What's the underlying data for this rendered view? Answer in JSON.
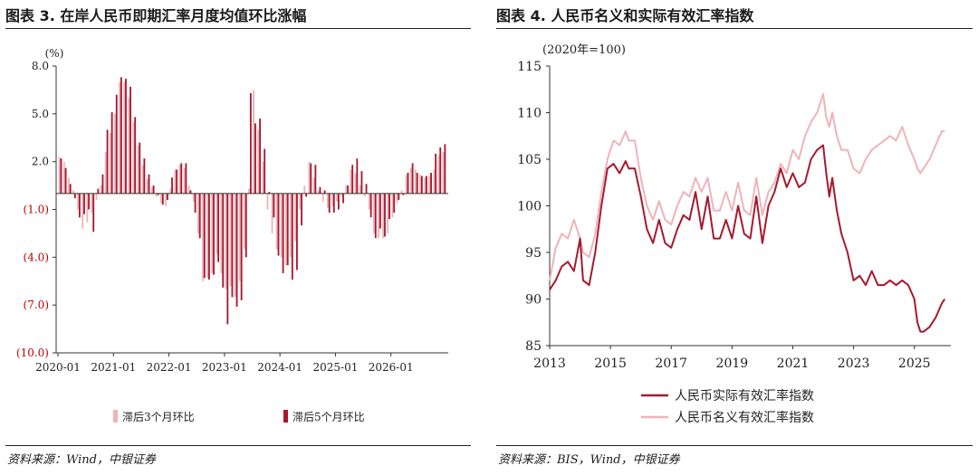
{
  "left": {
    "title": "图表 3. 在岸人民币即期汇率月度均值环比涨幅",
    "source": "资料来源：Wind，中银证券"
  },
  "right": {
    "title": "图表 4. 人民币名义和实际有效汇率指数",
    "source": "资料来源：BIS，Wind，中银证券"
  },
  "colors": {
    "dark": "#a6192e",
    "light": "#efb3b9",
    "neg_label": "#c00000",
    "axis": "#333333"
  },
  "chart_data": [
    {
      "type": "bar",
      "unit": "(%)",
      "ylim": [
        -10,
        8
      ],
      "yticks": [
        "8.0",
        "5.0",
        "2.0",
        "(1.0)",
        "(4.0)",
        "(7.0)",
        "(10.0)"
      ],
      "ytick_values": [
        8,
        5,
        2,
        -1,
        -4,
        -7,
        -10
      ],
      "xticks": [
        "2020-01",
        "2021-01",
        "2022-01",
        "2023-01",
        "2024-01",
        "2025-01",
        "2026-01"
      ],
      "categories_start": "2020-01",
      "legend_position": "bottom",
      "series": [
        {
          "name": "滞后3个月环比",
          "values": [
            2.3,
            2.0,
            1.0,
            0.2,
            -1.0,
            -2.2,
            -1.8,
            -1.2,
            -0.4,
            0.5,
            2.6,
            3.8,
            5.0,
            7.0,
            7.0,
            6.0,
            4.5,
            3.0,
            1.8,
            0.9,
            0.4,
            -0.2,
            -0.6,
            -0.8,
            0.3,
            1.5,
            1.8,
            1.6,
            0.5,
            -0.5,
            -2.5,
            -5.5,
            -5.3,
            -5.0,
            -3.8,
            -5.0,
            -6.0,
            -5.8,
            -6.5,
            -5.5,
            -3.5,
            0.3,
            6.5,
            4.0,
            2.0,
            -1.0,
            -2.5,
            -3.5,
            -4.0,
            -4.5,
            -4.0,
            -3.0,
            -1.0,
            0.5,
            2.0,
            1.0,
            0.2,
            -0.5,
            -0.9,
            -0.8,
            -0.5,
            -0.2,
            0.5,
            1.5,
            1.3,
            0.5,
            -0.2,
            -1.0,
            -2.5,
            -2.8,
            -2.8,
            -2.5,
            -1.5,
            -0.6,
            0.2,
            1.2,
            1.6,
            1.5,
            1.2,
            1.0,
            1.1,
            1.5,
            2.4,
            2.6
          ]
        },
        {
          "name": "滞后5个月环比",
          "values": [
            2.2,
            1.6,
            0.6,
            -0.3,
            -1.5,
            -1.3,
            -1.0,
            -2.4,
            0.3,
            1.2,
            4.0,
            5.1,
            6.2,
            7.3,
            7.2,
            6.7,
            4.8,
            3.2,
            2.2,
            1.2,
            0.5,
            -0.1,
            -0.7,
            -0.4,
            1.0,
            1.5,
            1.9,
            1.9,
            0.2,
            -1.2,
            -2.8,
            -5.3,
            -5.4,
            -5.1,
            -4.3,
            -5.9,
            -8.2,
            -6.5,
            -7.1,
            -6.7,
            -4.0,
            6.3,
            4.4,
            4.7,
            2.8,
            0.1,
            -1.5,
            -3.9,
            -5.0,
            -4.5,
            -5.4,
            -4.8,
            -2.0,
            -0.2,
            1.9,
            1.8,
            0.4,
            0.2,
            -1.2,
            -1.2,
            -1.0,
            -0.6,
            0.5,
            1.8,
            2.2,
            1.4,
            0.6,
            -1.5,
            -2.8,
            -2.2,
            -2.7,
            -1.6,
            -1.2,
            -0.4,
            -0.1,
            1.3,
            1.9,
            1.3,
            1.1,
            1.1,
            1.3,
            2.5,
            2.9,
            3.1
          ]
        }
      ]
    },
    {
      "type": "line",
      "unit": "(2020年=100)",
      "ylim": [
        85,
        115
      ],
      "yticks": [
        85,
        90,
        95,
        100,
        105,
        110,
        115
      ],
      "xlim": [
        2013,
        2026.2
      ],
      "xticks": [
        "2013",
        "2015",
        "2017",
        "2019",
        "2021",
        "2023",
        "2025"
      ],
      "xtick_values": [
        2013,
        2015,
        2017,
        2019,
        2021,
        2023,
        2025
      ],
      "legend_position": "bottom",
      "series": [
        {
          "name": "人民币实际有效汇率指数",
          "x": [
            2013.0,
            2013.2,
            2013.4,
            2013.6,
            2013.8,
            2014.0,
            2014.1,
            2014.3,
            2014.5,
            2014.7,
            2014.9,
            2015.1,
            2015.3,
            2015.5,
            2015.6,
            2015.8,
            2016.0,
            2016.2,
            2016.4,
            2016.6,
            2016.8,
            2017.0,
            2017.2,
            2017.4,
            2017.6,
            2017.8,
            2018.0,
            2018.2,
            2018.4,
            2018.6,
            2018.8,
            2019.0,
            2019.2,
            2019.4,
            2019.6,
            2019.8,
            2020.0,
            2020.2,
            2020.4,
            2020.6,
            2020.8,
            2021.0,
            2021.2,
            2021.4,
            2021.6,
            2021.8,
            2022.0,
            2022.1,
            2022.2,
            2022.3,
            2022.45,
            2022.6,
            2022.8,
            2023.0,
            2023.2,
            2023.4,
            2023.6,
            2023.8,
            2024.0,
            2024.2,
            2024.4,
            2024.6,
            2024.8,
            2025.0,
            2025.1,
            2025.2,
            2025.3,
            2025.5,
            2025.7,
            2025.9,
            2026.0
          ],
          "y": [
            91.0,
            92.0,
            93.5,
            94.0,
            93.0,
            96.5,
            92.0,
            91.5,
            95.0,
            100.0,
            104.0,
            104.5,
            103.5,
            104.8,
            104.0,
            104.0,
            101.0,
            97.5,
            96.0,
            98.5,
            96.0,
            95.5,
            97.5,
            99.0,
            98.5,
            101.5,
            97.5,
            101.0,
            96.5,
            96.5,
            98.5,
            96.5,
            100.0,
            97.0,
            96.5,
            101.0,
            96.0,
            100.0,
            101.5,
            104.0,
            102.0,
            103.5,
            102.0,
            102.5,
            105.0,
            106.0,
            106.5,
            103.5,
            101.0,
            103.0,
            99.5,
            97.0,
            95.0,
            92.0,
            92.5,
            91.5,
            93.0,
            91.5,
            91.5,
            92.0,
            91.5,
            92.0,
            91.5,
            90.0,
            87.5,
            86.5,
            86.5,
            87.0,
            88.0,
            89.5,
            90.0
          ]
        },
        {
          "name": "人民币名义有效汇率指数",
          "x": [
            2013.0,
            2013.2,
            2013.4,
            2013.6,
            2013.8,
            2014.0,
            2014.1,
            2014.3,
            2014.5,
            2014.7,
            2014.9,
            2015.1,
            2015.3,
            2015.5,
            2015.6,
            2015.8,
            2016.0,
            2016.2,
            2016.4,
            2016.6,
            2016.8,
            2017.0,
            2017.2,
            2017.4,
            2017.6,
            2017.8,
            2018.0,
            2018.2,
            2018.4,
            2018.6,
            2018.8,
            2019.0,
            2019.2,
            2019.4,
            2019.6,
            2019.8,
            2020.0,
            2020.2,
            2020.4,
            2020.6,
            2020.8,
            2021.0,
            2021.2,
            2021.4,
            2021.6,
            2021.8,
            2022.0,
            2022.1,
            2022.2,
            2022.3,
            2022.45,
            2022.6,
            2022.8,
            2023.0,
            2023.2,
            2023.4,
            2023.6,
            2023.8,
            2024.0,
            2024.2,
            2024.4,
            2024.6,
            2024.8,
            2025.0,
            2025.1,
            2025.2,
            2025.3,
            2025.5,
            2025.7,
            2025.9,
            2026.0
          ],
          "y": [
            92.0,
            95.5,
            97.0,
            96.5,
            98.5,
            96.5,
            95.0,
            94.5,
            97.0,
            101.5,
            105.0,
            107.0,
            106.5,
            108.0,
            107.0,
            107.0,
            103.0,
            100.0,
            98.5,
            100.5,
            98.5,
            98.0,
            100.0,
            101.5,
            101.0,
            103.0,
            101.5,
            103.0,
            99.5,
            99.5,
            101.5,
            99.5,
            102.5,
            99.5,
            99.0,
            103.0,
            99.0,
            101.5,
            102.5,
            104.5,
            103.5,
            106.0,
            105.0,
            107.5,
            109.0,
            110.0,
            112.0,
            109.5,
            108.5,
            110.0,
            107.5,
            106.0,
            106.0,
            104.0,
            103.5,
            105.0,
            106.0,
            106.5,
            107.0,
            107.5,
            107.0,
            108.5,
            106.5,
            105.0,
            104.0,
            103.5,
            104.0,
            105.0,
            106.5,
            108.0,
            108.0
          ]
        }
      ]
    }
  ]
}
